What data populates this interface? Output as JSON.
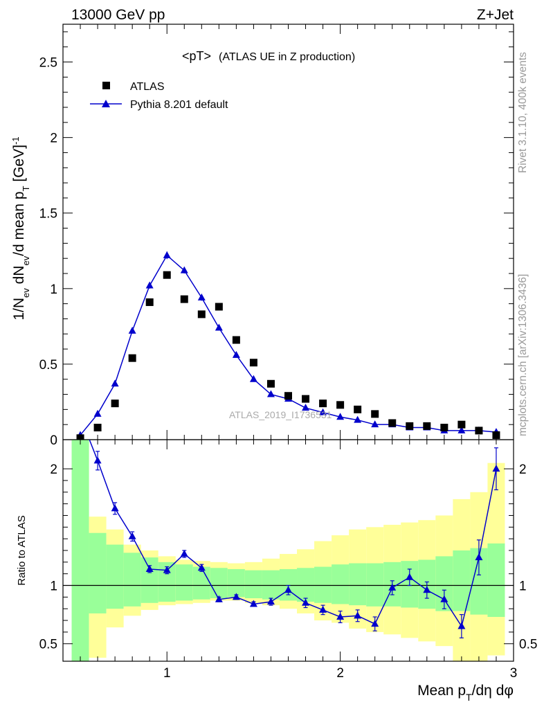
{
  "header": {
    "left": "13000 GeV pp",
    "right": "Z+Jet"
  },
  "side": {
    "top": "Rivet 3.1.10,  400k events",
    "bottom": "mcplots.cern.ch [arXiv:1306.3436]"
  },
  "legend": {
    "data_label": "ATLAS",
    "mc_label": "Pythia 8.201 default"
  },
  "plot_title": {
    "main": "<pT>",
    "sub": "(ATLAS UE in Z production)"
  },
  "watermark": "ATLAS_2019_I1736531",
  "colors": {
    "mc": "#0000cc",
    "data": "#000000",
    "band_inner": "#99ff99",
    "band_outer": "#ffff99"
  },
  "chart_data": [
    {
      "type": "scatter",
      "panel": "main",
      "ylabel": "1/Nev dNev/d mean pT [GeV]-1",
      "xlim": [
        0.4,
        3.0
      ],
      "ylim": [
        0,
        2.75
      ],
      "x_ticks": [
        1,
        2,
        3
      ],
      "y_ticks": [
        0,
        0.5,
        1,
        1.5,
        2,
        2.5
      ],
      "x": [
        0.5,
        0.6,
        0.7,
        0.8,
        0.9,
        1.0,
        1.1,
        1.2,
        1.3,
        1.4,
        1.5,
        1.6,
        1.7,
        1.8,
        1.9,
        2.0,
        2.1,
        2.2,
        2.3,
        2.4,
        2.5,
        2.6,
        2.7,
        2.8,
        2.9
      ],
      "series": [
        {
          "name": "ATLAS",
          "marker": "square",
          "values": [
            0.01,
            0.08,
            0.24,
            0.54,
            0.91,
            1.09,
            0.93,
            0.83,
            0.88,
            0.66,
            0.51,
            0.37,
            0.29,
            0.27,
            0.24,
            0.23,
            0.2,
            0.17,
            0.11,
            0.09,
            0.09,
            0.08,
            0.1,
            0.06,
            0.03
          ]
        },
        {
          "name": "Pythia 8.201 default",
          "marker": "triangle",
          "values": [
            0.03,
            0.17,
            0.37,
            0.72,
            1.02,
            1.22,
            1.12,
            0.94,
            0.74,
            0.56,
            0.4,
            0.3,
            0.27,
            0.21,
            0.18,
            0.15,
            0.13,
            0.1,
            0.1,
            0.08,
            0.08,
            0.06,
            0.06,
            0.06,
            0.05
          ],
          "errors": [
            0.005,
            0.01,
            0.01,
            0.015,
            0.02,
            0.025,
            0.02,
            0.02,
            0.015,
            0.01,
            0.01,
            0.01,
            0.008,
            0.008,
            0.006,
            0.006,
            0.005,
            0.005,
            0.005,
            0.004,
            0.004,
            0.004,
            0.004,
            0.004,
            0.004
          ]
        }
      ]
    },
    {
      "type": "line",
      "panel": "ratio",
      "ylabel": "Ratio to ATLAS",
      "xlabel": "Mean pT/dη dφ",
      "xlim": [
        0.4,
        3.0
      ],
      "ylim": [
        0.35,
        2.25
      ],
      "x_ticks": [
        1,
        2,
        3
      ],
      "y_ticks": [
        0.5,
        1,
        2
      ],
      "reference": 1,
      "x": [
        0.6,
        0.7,
        0.8,
        0.9,
        1.0,
        1.1,
        1.2,
        1.3,
        1.4,
        1.5,
        1.6,
        1.7,
        1.8,
        1.9,
        2.0,
        2.1,
        2.2,
        2.3,
        2.4,
        2.5,
        2.6,
        2.7,
        2.8,
        2.9
      ],
      "series": [
        {
          "name": "Pythia 8.201 default",
          "values": [
            2.07,
            1.66,
            1.42,
            1.14,
            1.13,
            1.27,
            1.15,
            0.88,
            0.9,
            0.84,
            0.86,
            0.96,
            0.85,
            0.79,
            0.73,
            0.74,
            0.67,
            0.98,
            1.07,
            0.96,
            0.88,
            0.65,
            1.24,
            2.0
          ],
          "errors": [
            0.08,
            0.05,
            0.04,
            0.03,
            0.03,
            0.03,
            0.03,
            0.02,
            0.02,
            0.02,
            0.03,
            0.04,
            0.04,
            0.04,
            0.05,
            0.05,
            0.06,
            0.06,
            0.07,
            0.07,
            0.08,
            0.1,
            0.15,
            0.18
          ]
        }
      ],
      "bands": {
        "edges": [
          0.45,
          0.55,
          0.65,
          0.75,
          0.85,
          0.95,
          1.05,
          1.15,
          1.25,
          1.35,
          1.45,
          1.55,
          1.65,
          1.75,
          1.85,
          1.95,
          2.05,
          2.15,
          2.25,
          2.35,
          2.45,
          2.55,
          2.65,
          2.75,
          2.85,
          2.95
        ],
        "inner_low": [
          0.3,
          0.76,
          0.8,
          0.82,
          0.85,
          0.86,
          0.87,
          0.88,
          0.89,
          0.9,
          0.89,
          0.88,
          0.87,
          0.86,
          0.85,
          0.84,
          0.83,
          0.82,
          0.82,
          0.81,
          0.8,
          0.78,
          0.78,
          0.75,
          0.73
        ],
        "inner_high": [
          2.25,
          1.45,
          1.35,
          1.28,
          1.24,
          1.2,
          1.18,
          1.16,
          1.15,
          1.14,
          1.13,
          1.13,
          1.14,
          1.15,
          1.16,
          1.18,
          1.19,
          1.19,
          1.2,
          1.21,
          1.22,
          1.25,
          1.3,
          1.32,
          1.36
        ],
        "outer_low": [
          0.3,
          0.38,
          0.64,
          0.74,
          0.79,
          0.83,
          0.84,
          0.85,
          0.87,
          0.87,
          0.85,
          0.83,
          0.8,
          0.76,
          0.7,
          0.68,
          0.63,
          0.6,
          0.58,
          0.55,
          0.52,
          0.48,
          0.34,
          0.34,
          0.4
        ],
        "outer_high": [
          2.25,
          1.59,
          1.48,
          1.35,
          1.3,
          1.25,
          1.22,
          1.21,
          1.2,
          1.19,
          1.2,
          1.23,
          1.27,
          1.31,
          1.38,
          1.43,
          1.48,
          1.5,
          1.52,
          1.54,
          1.56,
          1.6,
          1.74,
          1.8,
          2.05
        ]
      }
    }
  ]
}
